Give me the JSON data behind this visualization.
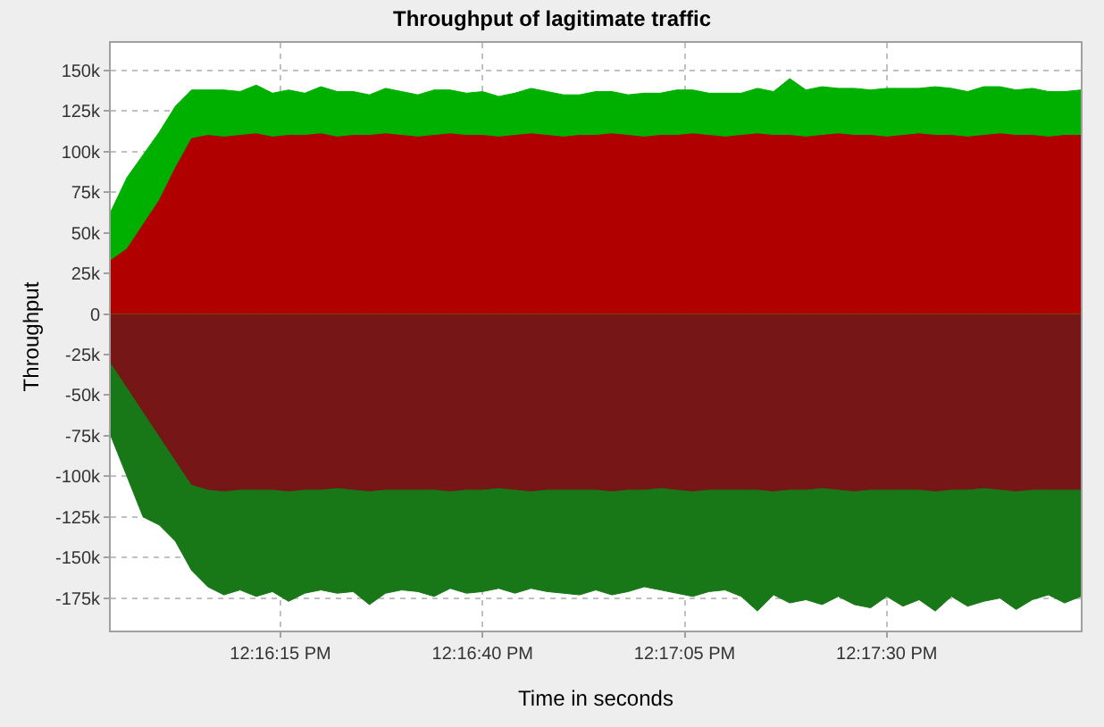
{
  "chart_data": {
    "type": "area",
    "title": "Throughput of lagitimate traffic",
    "xlabel": "Time in seconds",
    "ylabel": "Throughput",
    "grid": true,
    "x": [
      12.265,
      12.265556,
      12.266111,
      12.266667,
      12.267222,
      12.267778,
      12.268333,
      12.268889,
      12.269444,
      12.27,
      12.270556,
      12.271111,
      12.271667,
      12.272222,
      12.272778,
      12.273333,
      12.273889,
      12.274444,
      12.275,
      12.275556,
      12.276111,
      12.276667,
      12.277222,
      12.277778,
      12.278333,
      12.278889,
      12.279444,
      12.28,
      12.280556,
      12.281111,
      12.281667,
      12.282222,
      12.282778,
      12.283333,
      12.283889,
      12.284444,
      12.285,
      12.285556,
      12.286111,
      12.286667,
      12.287222,
      12.287778,
      12.288333,
      12.288889,
      12.289444,
      12.29,
      12.290556,
      12.291111,
      12.291667,
      12.292222,
      12.292778,
      12.293333,
      12.293889,
      12.294444,
      12.295,
      12.295556,
      12.296111,
      12.296667,
      12.297222,
      12.297778,
      12.298333
    ],
    "xlim": [
      12.265,
      12.298333
    ],
    "xticks": [
      {
        "value": 12.270833,
        "label": "12:16:15 PM"
      },
      {
        "value": 12.277778,
        "label": "12:16:40 PM"
      },
      {
        "value": 12.284722,
        "label": "12:17:05 PM"
      },
      {
        "value": 12.291667,
        "label": "12:17:30 PM"
      }
    ],
    "ylim": [
      -195000,
      167000
    ],
    "yticks": [
      {
        "value": -175000,
        "label": "-175k"
      },
      {
        "value": -150000,
        "label": "-150k"
      },
      {
        "value": -125000,
        "label": "-125k"
      },
      {
        "value": -100000,
        "label": "-100k"
      },
      {
        "value": -75000,
        "label": "-75k"
      },
      {
        "value": -50000,
        "label": "-50k"
      },
      {
        "value": -25000,
        "label": "-25k"
      },
      0,
      {
        "value": 25000,
        "label": "25k"
      },
      {
        "value": 50000,
        "label": "50k"
      },
      {
        "value": 75000,
        "label": "75k"
      },
      {
        "value": 100000,
        "label": "100k"
      },
      {
        "value": 125000,
        "label": "125k"
      },
      {
        "value": 150000,
        "label": "150k"
      }
    ],
    "series": [
      {
        "color": "#b00000",
        "values": [
          33000,
          40000,
          55000,
          70000,
          90000,
          108000,
          110000,
          109000,
          110000,
          111000,
          109000,
          110000,
          110000,
          111000,
          109000,
          110000,
          110000,
          111000,
          110000,
          109000,
          110000,
          111000,
          110000,
          110000,
          109000,
          110000,
          111000,
          110000,
          109000,
          110000,
          110000,
          111000,
          110000,
          109000,
          110000,
          110000,
          111000,
          110000,
          109000,
          110000,
          111000,
          110000,
          110000,
          109000,
          110000,
          111000,
          110000,
          110000,
          109000,
          110000,
          111000,
          110000,
          110000,
          109000,
          110000,
          111000,
          110000,
          110000,
          109000,
          110000,
          110000
        ]
      },
      {
        "color": "#00b000",
        "values": [
          63000,
          84000,
          98000,
          112000,
          128000,
          138000,
          138000,
          138000,
          137000,
          141000,
          136000,
          138000,
          136000,
          140000,
          137000,
          137000,
          135000,
          139000,
          137000,
          135000,
          138000,
          138000,
          136000,
          137000,
          134000,
          136000,
          139000,
          137000,
          135000,
          135000,
          137000,
          137000,
          135000,
          136000,
          136000,
          138000,
          138000,
          136000,
          136000,
          136000,
          139000,
          137000,
          145000,
          138000,
          140000,
          139000,
          139000,
          138000,
          139000,
          139000,
          139000,
          140000,
          139000,
          137000,
          140000,
          140000,
          138000,
          139000,
          137000,
          137000,
          138000
        ]
      },
      {
        "color": "#761616",
        "values": [
          -30000,
          -45000,
          -60000,
          -75000,
          -90000,
          -105000,
          -108000,
          -109000,
          -108000,
          -108000,
          -108000,
          -109000,
          -108000,
          -108000,
          -107000,
          -108000,
          -109000,
          -108000,
          -108000,
          -108000,
          -108000,
          -109000,
          -108000,
          -108000,
          -107000,
          -108000,
          -109000,
          -108000,
          -108000,
          -108000,
          -108000,
          -109000,
          -108000,
          -108000,
          -107000,
          -108000,
          -109000,
          -108000,
          -108000,
          -108000,
          -108000,
          -109000,
          -108000,
          -108000,
          -107000,
          -108000,
          -109000,
          -108000,
          -108000,
          -108000,
          -108000,
          -109000,
          -108000,
          -108000,
          -107000,
          -108000,
          -109000,
          -108000,
          -108000,
          -108000,
          -108000
        ]
      },
      {
        "color": "#187818",
        "values": [
          -75000,
          -100000,
          -125000,
          -130000,
          -140000,
          -158000,
          -168000,
          -173000,
          -170000,
          -174000,
          -171000,
          -177000,
          -172000,
          -170000,
          -172000,
          -171000,
          -179000,
          -172000,
          -170000,
          -171000,
          -174000,
          -169000,
          -172000,
          -171000,
          -169000,
          -172000,
          -169000,
          -171000,
          -172000,
          -173000,
          -170000,
          -173000,
          -171000,
          -168000,
          -170000,
          -172000,
          -174000,
          -171000,
          -170000,
          -174000,
          -183000,
          -173000,
          -178000,
          -176000,
          -179000,
          -174000,
          -179000,
          -181000,
          -174000,
          -180000,
          -176000,
          -183000,
          -174000,
          -180000,
          -177000,
          -175000,
          -182000,
          -176000,
          -173000,
          -178000,
          -174000
        ]
      }
    ]
  }
}
